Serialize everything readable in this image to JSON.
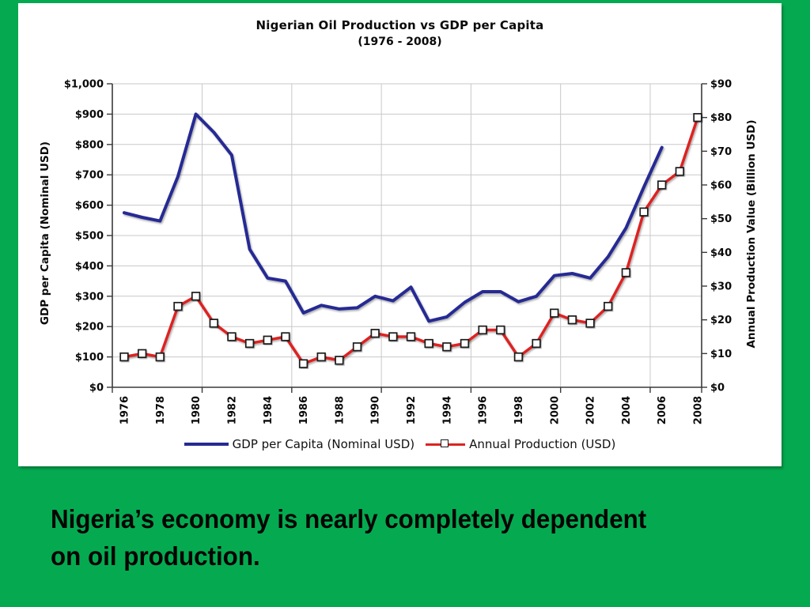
{
  "slide": {
    "background_color": "#05aa50",
    "panel_color": "#ffffff",
    "caption": {
      "line1": "Nigeria’s economy is nearly completely dependent",
      "line2": "on oil production."
    }
  },
  "chart_data": {
    "type": "line",
    "title": "Nigerian Oil Production vs GDP per Capita",
    "subtitle": "(1976 - 2008)",
    "years": [
      1976,
      1977,
      1978,
      1979,
      1980,
      1981,
      1982,
      1983,
      1984,
      1985,
      1986,
      1987,
      1988,
      1989,
      1990,
      1991,
      1992,
      1993,
      1994,
      1995,
      1996,
      1997,
      1998,
      1999,
      2000,
      2001,
      2002,
      2003,
      2004,
      2005,
      2006,
      2007,
      2008
    ],
    "x_tick_labels": [
      "1976",
      "1978",
      "1980",
      "1982",
      "1984",
      "1986",
      "1988",
      "1990",
      "1992",
      "1994",
      "1996",
      "1998",
      "2000",
      "2002",
      "2004",
      "2006",
      "2008"
    ],
    "vertical_gridline_years": [
      1980,
      1985,
      1990,
      1995,
      2000,
      2005
    ],
    "grid": true,
    "legend_position": "bottom",
    "left_axis": {
      "label": "GDP per Capita (Nominal USD)",
      "min": 0,
      "max": 1000,
      "step": 100,
      "tick_prefix": "$"
    },
    "right_axis": {
      "label": "Annual Production Value (Billion USD)",
      "min": 0,
      "max": 90,
      "step": 10,
      "tick_prefix": "$"
    },
    "series": [
      {
        "name": "GDP per Capita (Nominal USD)",
        "axis": "left",
        "color": "#262a93",
        "marker": "none",
        "values": [
          575,
          560,
          548,
          695,
          900,
          840,
          765,
          455,
          360,
          350,
          245,
          270,
          258,
          262,
          300,
          285,
          330,
          218,
          232,
          280,
          315,
          315,
          282,
          300,
          368,
          375,
          360,
          430,
          525,
          660,
          790,
          null,
          null
        ]
      },
      {
        "name": "Annual Production (USD)",
        "axis": "right",
        "color": "#dd2420",
        "marker": "square",
        "marker_fill": "#ffffff",
        "marker_stroke": "#1a1a1a",
        "values": [
          9,
          10,
          9,
          24,
          27,
          19,
          15,
          13,
          14,
          15,
          7,
          9,
          8,
          12,
          16,
          15,
          15,
          13,
          12,
          13,
          17,
          17,
          9,
          13,
          22,
          20,
          19,
          24,
          34,
          52,
          60,
          64,
          80
        ]
      }
    ],
    "colors": {
      "gridline": "#c8c8c8",
      "axis": "#3a3a3a",
      "tick_text": "#0a0a0a"
    }
  }
}
